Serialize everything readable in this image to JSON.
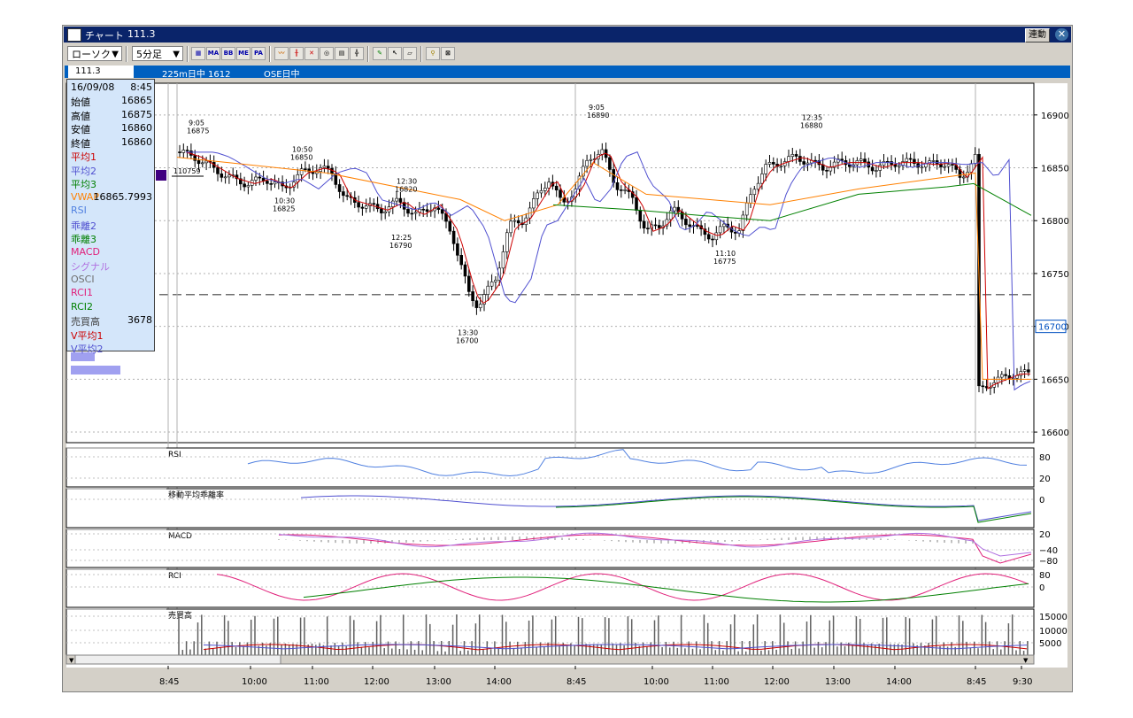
{
  "window": {
    "title": "チャート",
    "title_value": "111.3",
    "link_button": "連動",
    "close_glyph": "✕"
  },
  "toolbar": {
    "chart_type": "ローソク",
    "interval": "5分足",
    "arrow": "▼",
    "tools": [
      "MA",
      "BB",
      "ME",
      "PA"
    ]
  },
  "infobar": {
    "current_value": "111.3",
    "instrument": "225m日中 1612",
    "session": "OSE日中"
  },
  "infopanel": {
    "date": "16/09/08",
    "time": "8:45",
    "rows": [
      {
        "label": "始値",
        "value": "16865",
        "color": "#000000"
      },
      {
        "label": "高値",
        "value": "16875",
        "color": "#000000"
      },
      {
        "label": "安値",
        "value": "16860",
        "color": "#000000"
      },
      {
        "label": "終値",
        "value": "16860",
        "color": "#000000"
      },
      {
        "label": "平均1",
        "value": "",
        "color": "#cc0000"
      },
      {
        "label": "平均2",
        "value": "",
        "color": "#5050d0"
      },
      {
        "label": "平均3",
        "value": "",
        "color": "#008000"
      },
      {
        "label": "VWAP",
        "value": "16865.7993",
        "color": "#ff8000"
      },
      {
        "label": "RSI",
        "value": "",
        "color": "#5080e0"
      },
      {
        "label": "乖離2",
        "value": "",
        "color": "#5050d0"
      },
      {
        "label": "乖離3",
        "value": "",
        "color": "#008000"
      },
      {
        "label": "MACD",
        "value": "",
        "color": "#e0207a"
      },
      {
        "label": "シグナル",
        "value": "",
        "color": "#b070e0"
      },
      {
        "label": "OSCI",
        "value": "",
        "color": "#707070"
      },
      {
        "label": "RCI1",
        "value": "",
        "color": "#e0207a"
      },
      {
        "label": "RCI2",
        "value": "",
        "color": "#008000"
      },
      {
        "label": "売買高",
        "value": "3678",
        "color": "#404040"
      },
      {
        "label": "V平均1",
        "value": "",
        "color": "#cc0000"
      },
      {
        "label": "V平均2",
        "value": "",
        "color": "#5050d0"
      }
    ]
  },
  "price_axis": {
    "ticks": [
      16900,
      16850,
      16800,
      16750,
      16700,
      16650,
      16600
    ],
    "ylim": [
      16590,
      16930
    ],
    "current_price": "16700",
    "dashed_level": 16730,
    "prev_close_label": "110759"
  },
  "annotations": [
    {
      "time": "9:05",
      "price": "16875"
    },
    {
      "time": "10:50",
      "price": "16850"
    },
    {
      "time": "10:30",
      "price": "16825"
    },
    {
      "time": "12:30",
      "price": "16820"
    },
    {
      "time": "12:25",
      "price": "16790"
    },
    {
      "time": "13:30",
      "price": "16700"
    },
    {
      "time": "9:05",
      "price": "16890"
    },
    {
      "time": "12:35",
      "price": "16880"
    },
    {
      "time": "11:10",
      "price": "16775"
    }
  ],
  "panels": {
    "rsi": {
      "label": "RSI",
      "ticks": [
        "80",
        "20"
      ]
    },
    "divergence": {
      "label": "移動平均乖離率",
      "ticks": [
        "0"
      ]
    },
    "macd": {
      "label": "MACD",
      "ticks": [
        "20",
        "−40",
        "−80"
      ]
    },
    "rci": {
      "label": "RCI",
      "ticks": [
        "80",
        "0"
      ]
    },
    "volume": {
      "label": "売買高",
      "ticks": [
        "15000",
        "10000",
        "5000"
      ]
    }
  },
  "xaxis": {
    "labels": [
      "8:45",
      "10:00",
      "11:00",
      "12:00",
      "13:00",
      "14:00",
      "8:45",
      "10:00",
      "11:00",
      "12:00",
      "13:00",
      "14:00",
      "8:45",
      "9:30"
    ]
  },
  "colors": {
    "ma1": "#cc0000",
    "ma2": "#5050d0",
    "ma3": "#008000",
    "vwap": "#ff8000",
    "rsi": "#5080e0",
    "macd": "#e0207a",
    "signal": "#b070e0",
    "title_bg": "#0a246a",
    "info_bg": "#0060c0"
  }
}
